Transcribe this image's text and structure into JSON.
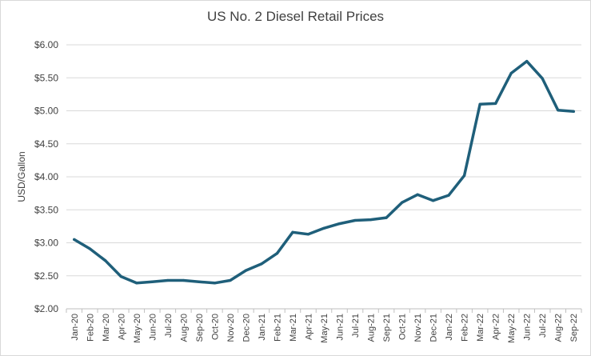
{
  "chart_data": {
    "type": "line",
    "title": "US No. 2 Diesel Retail Prices",
    "xlabel": "",
    "ylabel": "USD/Gallon",
    "ylim": [
      2.0,
      6.0
    ],
    "yticks": [
      "$2.00",
      "$2.50",
      "$3.00",
      "$3.50",
      "$4.00",
      "$4.50",
      "$5.00",
      "$5.50",
      "$6.00"
    ],
    "ytick_values": [
      2.0,
      2.5,
      3.0,
      3.5,
      4.0,
      4.5,
      5.0,
      5.5,
      6.0
    ],
    "grid": true,
    "legend": "none",
    "categories": [
      "Jan-20",
      "Feb-20",
      "Mar-20",
      "Apr-20",
      "May-20",
      "Jun-20",
      "Jul-20",
      "Aug-20",
      "Sep-20",
      "Oct-20",
      "Nov-20",
      "Dec-20",
      "Jan-21",
      "Feb-21",
      "Mar-21",
      "Apr-21",
      "May-21",
      "Jun-21",
      "Jul-21",
      "Aug-21",
      "Sep-21",
      "Oct-21",
      "Nov-21",
      "Dec-21",
      "Jan-22",
      "Feb-22",
      "Mar-22",
      "Apr-22",
      "May-22",
      "Jun-22",
      "Jul-22",
      "Aug-22",
      "Sep-22"
    ],
    "series": [
      {
        "values": [
          3.05,
          2.91,
          2.73,
          2.49,
          2.39,
          2.41,
          2.43,
          2.43,
          2.41,
          2.39,
          2.43,
          2.58,
          2.68,
          2.84,
          3.16,
          3.13,
          3.22,
          3.29,
          3.34,
          3.35,
          3.38,
          3.61,
          3.73,
          3.64,
          3.72,
          4.02,
          5.1,
          5.11,
          5.57,
          5.75,
          5.49,
          5.01,
          4.99
        ],
        "color": "#1f5f7a"
      }
    ]
  }
}
